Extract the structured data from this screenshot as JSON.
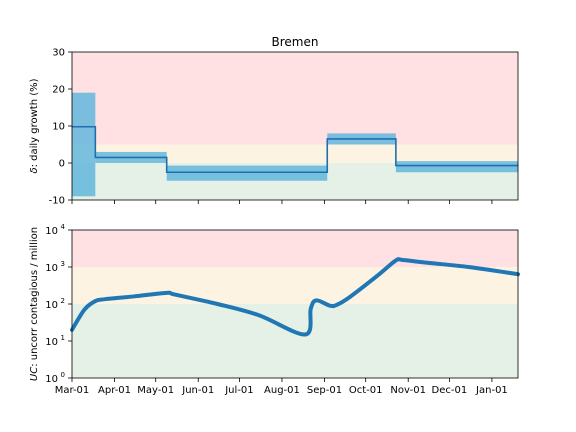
{
  "chart_data": [
    {
      "type": "step",
      "title": "Bremen",
      "ylabel_prefix": "δ",
      "ylabel_rest": ": daily growth (%)",
      "ylim": [
        -10,
        30
      ],
      "yticks": [
        -10,
        0,
        10,
        20,
        30
      ],
      "zones": [
        {
          "from": 5,
          "to": 30,
          "color": "#ffe1e3"
        },
        {
          "from": 0,
          "to": 5,
          "color": "#fdf3e3"
        },
        {
          "from": -10,
          "to": 0,
          "color": "#e5f1e6"
        }
      ],
      "segments": [
        {
          "start": "2020-03-01",
          "end": "2020-03-18",
          "value": 9.8,
          "ci_low": -9,
          "ci_high": 19
        },
        {
          "start": "2020-03-18",
          "end": "2020-05-09",
          "value": 1.5,
          "ci_low": 0,
          "ci_high": 3
        },
        {
          "start": "2020-05-09",
          "end": "2020-09-03",
          "value": -2.5,
          "ci_low": -4.8,
          "ci_high": -0.7
        },
        {
          "start": "2020-09-03",
          "end": "2020-10-23",
          "value": 6.5,
          "ci_low": 5,
          "ci_high": 8
        },
        {
          "start": "2020-10-23",
          "end": "2021-01-20",
          "value": -0.7,
          "ci_low": -2.5,
          "ci_high": 0.5
        }
      ],
      "colors": {
        "line": "#1f6fad",
        "ci": "#5ab4dc"
      }
    },
    {
      "type": "line",
      "ylabel_prefix": "UC",
      "ylabel_rest": ": uncorr contagious / million",
      "yscale": "log",
      "ylim": [
        1,
        10000
      ],
      "yticks": [
        {
          "base": "10",
          "exp": "0"
        },
        {
          "base": "10",
          "exp": "1"
        },
        {
          "base": "10",
          "exp": "2"
        },
        {
          "base": "10",
          "exp": "3"
        },
        {
          "base": "10",
          "exp": "4"
        }
      ],
      "zones": [
        {
          "from": 1000,
          "to": 10000,
          "color": "#ffe1e3"
        },
        {
          "from": 100,
          "to": 1000,
          "color": "#fdf3e3"
        },
        {
          "from": 1,
          "to": 100,
          "color": "#e5f1e6"
        }
      ],
      "series": [
        {
          "x": [
            "2020-03-01",
            "2020-03-10",
            "2020-03-18",
            "2020-03-25",
            "2020-04-15",
            "2020-05-09",
            "2020-05-15",
            "2020-06-15",
            "2020-07-15",
            "2020-08-18",
            "2020-08-22",
            "2020-08-26",
            "2020-09-05",
            "2020-09-10",
            "2020-09-20",
            "2020-10-10",
            "2020-10-23",
            "2020-10-28",
            "2020-11-15",
            "2020-12-15",
            "2021-01-20"
          ],
          "y": [
            20,
            70,
            120,
            135,
            160,
            200,
            180,
            100,
            50,
            15,
            75,
            125,
            90,
            95,
            160,
            600,
            1500,
            1550,
            1300,
            1000,
            640
          ]
        }
      ],
      "colors": {
        "line": "#1f77b4"
      }
    }
  ],
  "x_axis": {
    "start": "2020-03-01",
    "end": "2021-01-20",
    "ticks": [
      {
        "date": "2020-03-01",
        "label": "Mar-01"
      },
      {
        "date": "2020-04-01",
        "label": "Apr-01"
      },
      {
        "date": "2020-05-01",
        "label": "May-01"
      },
      {
        "date": "2020-06-01",
        "label": "Jun-01"
      },
      {
        "date": "2020-07-01",
        "label": "Jul-01"
      },
      {
        "date": "2020-08-01",
        "label": "Aug-01"
      },
      {
        "date": "2020-09-01",
        "label": "Sep-01"
      },
      {
        "date": "2020-10-01",
        "label": "Oct-01"
      },
      {
        "date": "2020-11-01",
        "label": "Nov-01"
      },
      {
        "date": "2020-12-01",
        "label": "Dec-01"
      },
      {
        "date": "2021-01-01",
        "label": "Jan-01"
      }
    ]
  }
}
